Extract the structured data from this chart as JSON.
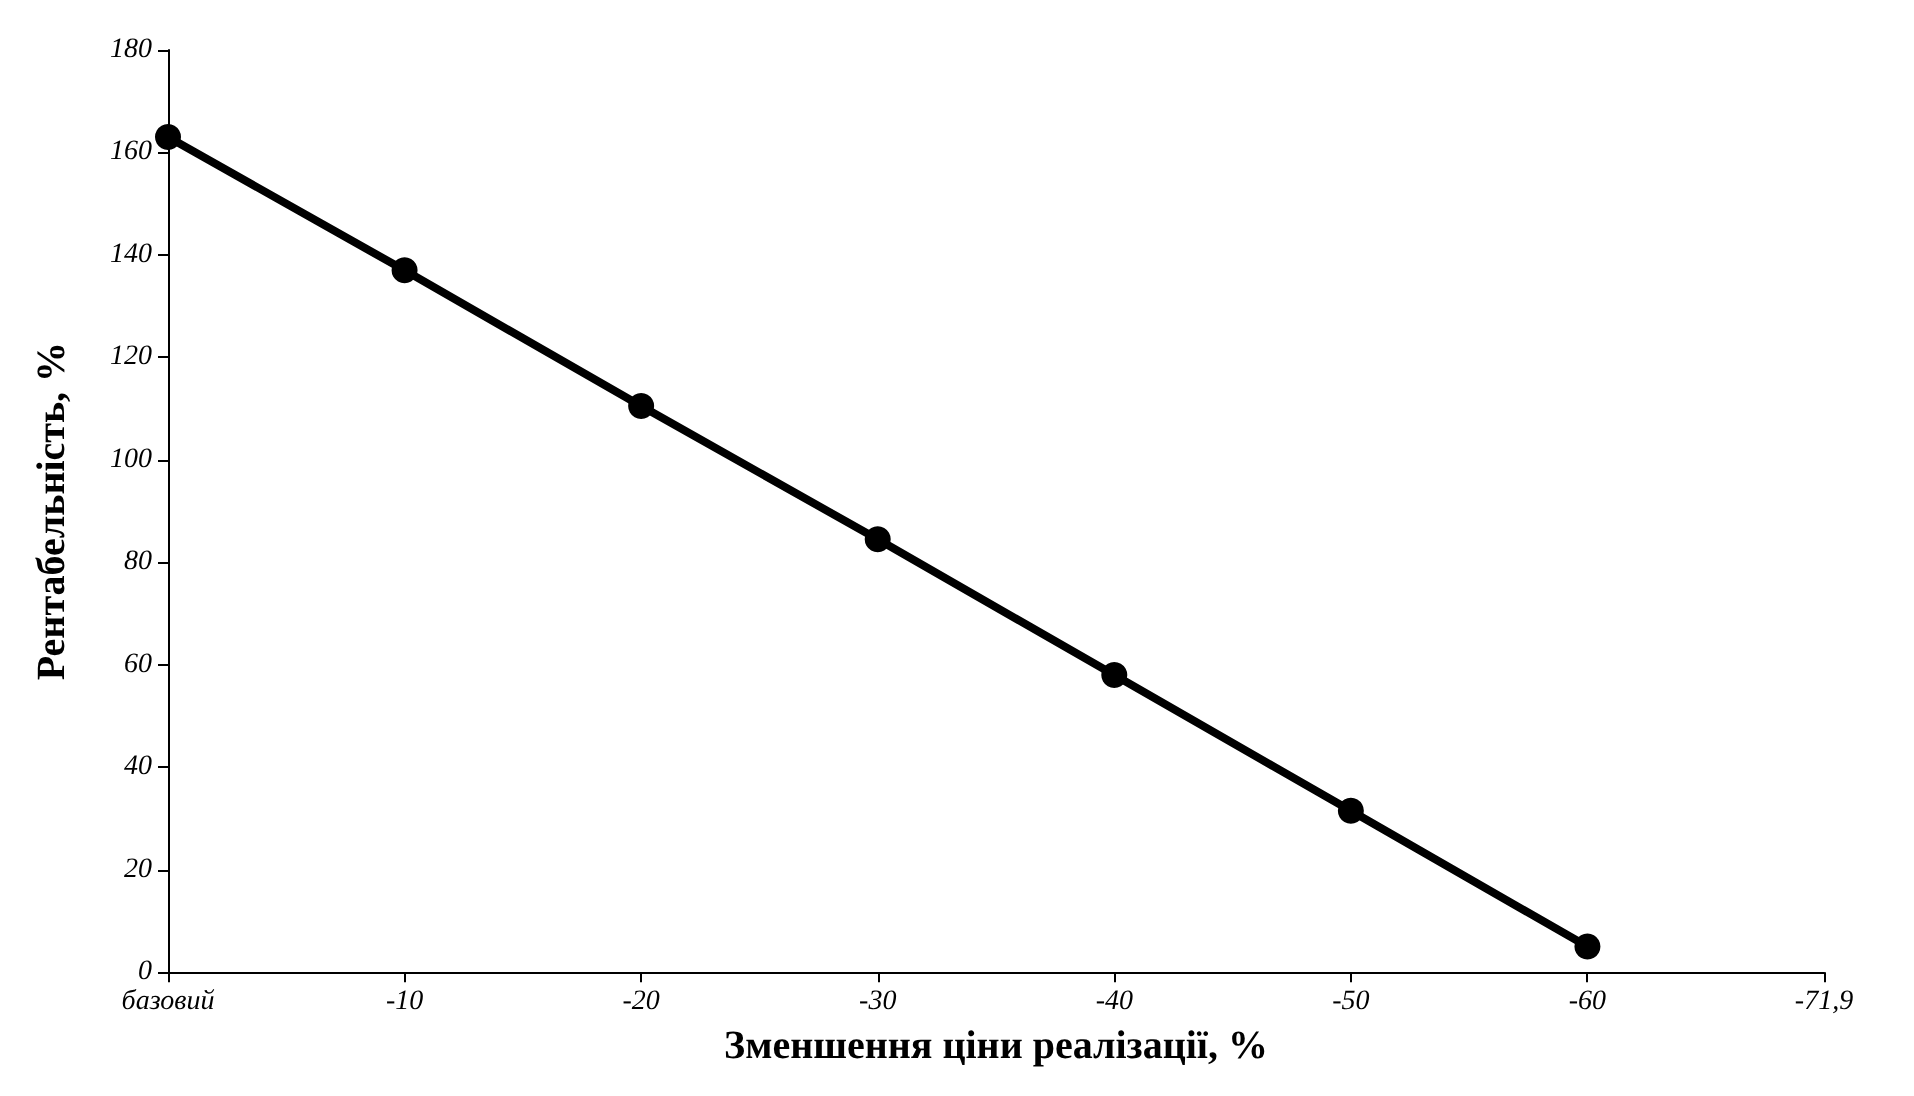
{
  "chart_data": {
    "type": "line",
    "xlabel": "Зменшення ціни реалізації, %",
    "ylabel": "Рентабельність, %",
    "categories": [
      "базовий",
      "-10",
      "-20",
      "-30",
      "-40",
      "-50",
      "-60",
      "-71,9"
    ],
    "series": [
      {
        "color": "#000000",
        "values": [
          163,
          137,
          110.5,
          84.5,
          58,
          31.5,
          5,
          null
        ]
      }
    ],
    "ylim": [
      0,
      180
    ],
    "yticks": [
      0,
      20,
      40,
      60,
      80,
      100,
      120,
      140,
      160,
      180
    ],
    "grid": false,
    "marker": "circle",
    "line_style": "solid"
  }
}
